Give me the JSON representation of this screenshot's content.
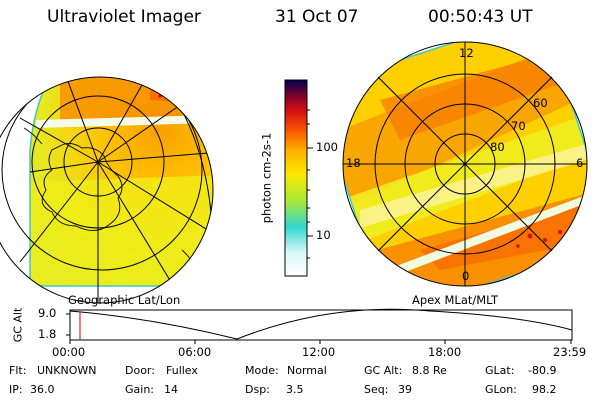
{
  "header": {
    "instrument": "Ultraviolet Imager",
    "date": "31 Oct 07",
    "time": "00:50:43 UT"
  },
  "colors": {
    "scale": [
      "#ffffff",
      "#d8f8f8",
      "#30d8d0",
      "#a8e838",
      "#ffe800",
      "#ffb000",
      "#f85800",
      "#d81010",
      "#700030",
      "#000050"
    ]
  },
  "colorbar": {
    "unit_label": "photon cm-2s-1",
    "ticks": [
      {
        "label": "100",
        "value": 100
      },
      {
        "label": "10",
        "value": 10
      }
    ]
  },
  "left_panel": {
    "label": "Geographic Lat/Lon"
  },
  "right_panel": {
    "label": "Apex  MLat/MLT",
    "mlt_labels": [
      "12",
      "18",
      "6",
      "0"
    ],
    "mlat_labels": [
      "60",
      "70",
      "80"
    ]
  },
  "altitude_plot": {
    "y_label": "GC Alt",
    "y_ticks": [
      "9.0",
      "1.8"
    ],
    "x_ticks": [
      "00:00",
      "06:00",
      "12:00",
      "18:00",
      "23:59"
    ]
  },
  "status": {
    "row1": [
      {
        "label": "Flt:",
        "value": "UNKNOWN"
      },
      {
        "label": "Door:",
        "value": "Fullex"
      },
      {
        "label": "Mode:",
        "value": "Normal"
      },
      {
        "label": "GC Alt:",
        "value": "8.8 Re"
      },
      {
        "label": "GLat:",
        "value": "-80.9"
      }
    ],
    "row2": [
      {
        "label": "IP:",
        "value": "36.0"
      },
      {
        "label": "Gain:",
        "value": "14"
      },
      {
        "label": "Dsp:",
        "value": "3.5"
      },
      {
        "label": "Seq:",
        "value": "39"
      },
      {
        "label": "GLon:",
        "value": "98.2"
      }
    ]
  }
}
